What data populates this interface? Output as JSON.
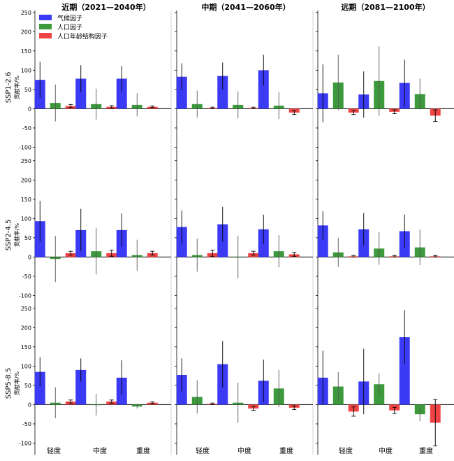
{
  "legend": [
    {
      "name": "气候因子",
      "color": "#3b3bf5"
    },
    {
      "name": "人口因子",
      "color": "#3c9a3c"
    },
    {
      "name": "人口年龄结构因子",
      "color": "#ee4444"
    }
  ],
  "colors": [
    "#3b3bf5",
    "#3c9a3c",
    "#ee4444"
  ],
  "chart_data": {
    "type": "bar",
    "ylim": [
      -130,
      255
    ],
    "yticks": [
      "-100",
      "-50",
      "0",
      "50",
      "100",
      "150",
      "200",
      "250"
    ],
    "ylabel": "贡献率/%",
    "columns": [
      "近期（2021—2040年）",
      "中期（2041—2060年）",
      "远期（2081—2100年）"
    ],
    "rows": [
      "SSP1-2.6",
      "SSP2-4.5",
      "SSP5-8.5"
    ],
    "categories": [
      "轻度",
      "中度",
      "重度"
    ],
    "panels": [
      [
        {
          "values": [
            [
              75,
              15,
              7
            ],
            [
              78,
              12,
              5
            ],
            [
              78,
              10,
              5
            ]
          ],
          "err": [
            [
              47,
              48,
              4
            ],
            [
              35,
              40,
              3
            ],
            [
              33,
              30,
              2
            ]
          ]
        },
        {
          "values": [
            [
              83,
              12,
              2
            ],
            [
              85,
              10,
              2
            ],
            [
              100,
              8,
              -10
            ]
          ],
          "err": [
            [
              35,
              35,
              2
            ],
            [
              35,
              35,
              2
            ],
            [
              40,
              35,
              5
            ]
          ]
        },
        {
          "values": [
            [
              40,
              68,
              -10
            ],
            [
              37,
              72,
              -8
            ],
            [
              67,
              38,
              -18
            ]
          ],
          "err": [
            [
              75,
              72,
              5
            ],
            [
              60,
              90,
              5
            ],
            [
              60,
              40,
              15
            ]
          ]
        }
      ],
      [
        {
          "values": [
            [
              93,
              -5,
              10
            ],
            [
              70,
              15,
              10
            ],
            [
              70,
              5,
              10
            ]
          ],
          "err": [
            [
              53,
              60,
              5
            ],
            [
              55,
              60,
              8
            ],
            [
              43,
              40,
              5
            ]
          ]
        },
        {
          "values": [
            [
              78,
              5,
              10
            ],
            [
              85,
              0,
              10
            ],
            [
              72,
              15,
              7
            ]
          ],
          "err": [
            [
              43,
              43,
              8
            ],
            [
              45,
              55,
              5
            ],
            [
              38,
              42,
              5
            ]
          ]
        },
        {
          "values": [
            [
              82,
              12,
              2
            ],
            [
              72,
              22,
              2
            ],
            [
              67,
              25,
              2
            ]
          ],
          "err": [
            [
              37,
              38,
              2
            ],
            [
              42,
              42,
              2
            ],
            [
              43,
              46,
              2
            ]
          ]
        }
      ],
      [
        {
          "values": [
            [
              85,
              5,
              8
            ],
            [
              90,
              0,
              8
            ],
            [
              70,
              -5,
              5
            ]
          ],
          "err": [
            [
              38,
              40,
              4
            ],
            [
              30,
              28,
              4
            ],
            [
              45,
              5,
              2
            ]
          ]
        },
        {
          "values": [
            [
              77,
              20,
              2
            ],
            [
              105,
              5,
              -10
            ],
            [
              62,
              42,
              -8
            ]
          ],
          "err": [
            [
              43,
              43,
              2
            ],
            [
              60,
              52,
              5
            ],
            [
              55,
              48,
              5
            ]
          ]
        },
        {
          "values": [
            [
              70,
              47,
              -18
            ],
            [
              60,
              53,
              -15
            ],
            [
              175,
              -25,
              -47
            ]
          ],
          "err": [
            [
              70,
              37,
              12
            ],
            [
              85,
              28,
              8
            ],
            [
              70,
              18,
              60
            ]
          ]
        }
      ]
    ]
  }
}
